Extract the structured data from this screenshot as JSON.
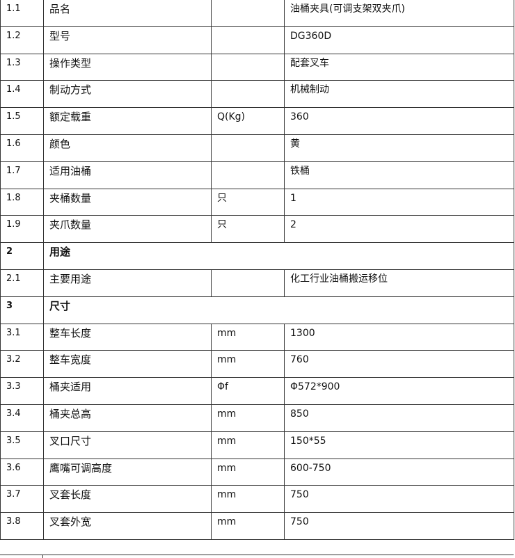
{
  "table": {
    "rows": [
      {
        "no": "1.1",
        "name": "品名",
        "value": "油桶夹具(可调支架双夹爪)"
      },
      {
        "no": "1.2",
        "name": "型号",
        "value": "DG360D"
      },
      {
        "no": "1.3",
        "name": "操作类型",
        "value": "配套叉车"
      },
      {
        "no": "1.4",
        "name": "制动方式",
        "value": "机械制动"
      },
      {
        "no": "1.5",
        "name": "额定载重",
        "unit": "Q(Kg)",
        "value": "360"
      },
      {
        "no": "1.6",
        "name": "颜色",
        "value": "黄"
      },
      {
        "no": "1.7",
        "name": "适用油桶",
        "value": "铁桶"
      },
      {
        "no": "1.8",
        "name": "夹桶数量",
        "unit": "只",
        "value": "1"
      },
      {
        "no": "1.9",
        "name": "夹爪数量",
        "unit": "只",
        "value": "2"
      },
      {
        "no": "2",
        "section": "用途"
      },
      {
        "no": "2.1",
        "name": "主要用途",
        "value": "化工行业油桶搬运移位"
      },
      {
        "no": "3",
        "section": "尺寸"
      },
      {
        "no": "3.1",
        "name": "整车长度",
        "unit": "mm",
        "value": "1300"
      },
      {
        "no": "3.2",
        "name": "整车宽度",
        "unit": "mm",
        "value": "760"
      },
      {
        "no": "3.3",
        "name": "桶夹适用",
        "unit": "Φf",
        "value": "Φ572*900"
      },
      {
        "no": "3.4",
        "name": "桶夹总高",
        "unit": "mm",
        "value": "850"
      },
      {
        "no": "3.5",
        "name": "叉口尺寸",
        "unit": "mm",
        "value": "150*55"
      },
      {
        "no": "3.6",
        "name": "鹰嘴可调高度",
        "unit": "mm",
        "value": "600-750"
      },
      {
        "no": "3.7",
        "name": "叉套长度",
        "unit": "mm",
        "value": "750"
      },
      {
        "no": "3.8",
        "name": "叉套外宽",
        "unit": "mm",
        "value": "750"
      }
    ]
  }
}
